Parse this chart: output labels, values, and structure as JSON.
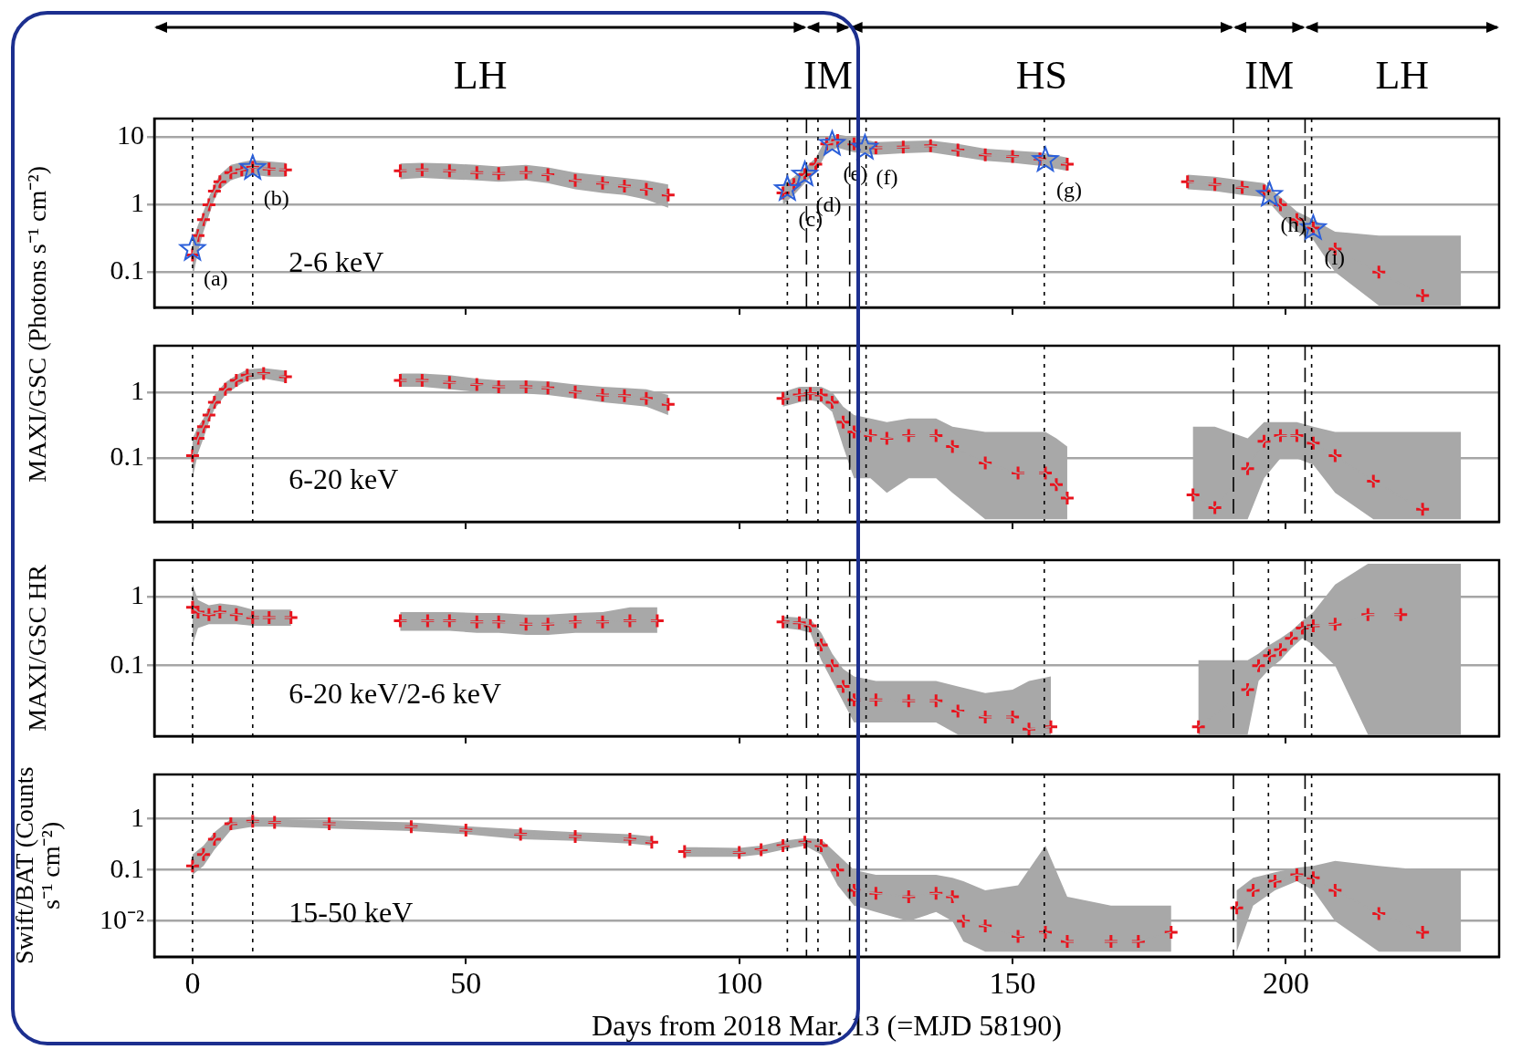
{
  "chart_data": [
    {
      "type": "scatter",
      "ylabel": "MAXI/GSC (Photons s⁻¹ cm⁻²)",
      "log": true,
      "grid": "y",
      "tick_labels": "y",
      "xlim": [
        -7,
        239
      ],
      "xticks": [
        0,
        50,
        100,
        150,
        200
      ],
      "ylim": [
        0.03,
        19
      ],
      "yticks": [
        0.1,
        1,
        10
      ],
      "x": [
        0,
        1,
        2,
        3,
        4,
        5,
        7,
        9,
        11,
        14,
        17,
        27,
        38,
        42,
        47,
        52,
        56,
        61,
        65,
        70,
        75,
        79,
        83,
        87,
        98,
        108,
        110,
        112,
        114,
        116,
        118,
        121,
        125,
        130,
        135,
        140,
        145,
        150,
        155,
        160,
        171,
        182,
        187,
        192,
        196,
        199,
        202,
        205,
        209,
        217,
        225,
        232
      ],
      "series": [
        {
          "type": "line",
          "marker": "none",
          "color": "#a8a8a8",
          "values": [
            0.18,
            0.35,
            0.6,
            1.0,
            1.6,
            2.2,
            3.0,
            3.3,
            3.6,
            3.4,
            3.3,
            null,
            3.2,
            3.3,
            3.2,
            3.0,
            2.9,
            3.0,
            2.8,
            2.3,
            2.1,
            1.9,
            1.7,
            1.4,
            null,
            1.5,
            2.0,
            2.8,
            4.0,
            8.0,
            9.0,
            8.0,
            7.0,
            7.2,
            7.5,
            6.5,
            5.5,
            5.2,
            4.8,
            4.0,
            null,
            2.2,
            2.0,
            1.8,
            1.6,
            1.0,
            0.6,
            0.45,
            0.22,
            0.1,
            0.045,
            null
          ],
          "lower": [
            0.08,
            0.2,
            0.4,
            0.7,
            1.2,
            1.7,
            2.3,
            2.6,
            2.8,
            2.6,
            2.6,
            null,
            2.4,
            2.5,
            2.4,
            2.3,
            2.2,
            2.3,
            2.1,
            1.7,
            1.5,
            1.4,
            1.2,
            0.9,
            null,
            1.0,
            1.4,
            2.1,
            3.0,
            6.0,
            7.0,
            6.0,
            5.5,
            5.8,
            6.0,
            5.2,
            4.5,
            4.2,
            3.8,
            3.2,
            null,
            1.7,
            1.6,
            1.4,
            1.3,
            0.7,
            0.4,
            0.3,
            0.1,
            0.032,
            0.032,
            0.032
          ],
          "upper": [
            0.3,
            0.5,
            0.8,
            1.3,
            2.0,
            2.8,
            3.9,
            4.3,
            4.6,
            4.4,
            4.2,
            null,
            4.1,
            4.2,
            4.1,
            3.9,
            3.7,
            3.9,
            3.6,
            3.0,
            2.7,
            2.5,
            2.3,
            2.0,
            null,
            2.0,
            2.6,
            3.5,
            5.0,
            10,
            11,
            10,
            8.5,
            8.8,
            9.0,
            8.0,
            6.8,
            6.4,
            6.0,
            5.0,
            null,
            2.8,
            2.6,
            2.3,
            2.1,
            1.3,
            0.8,
            0.6,
            0.4,
            0.35,
            0.35,
            0.35
          ]
        },
        {
          "type": "scatter",
          "marker": "cross",
          "color": "#e8141e",
          "values": [
            0.18,
            0.35,
            0.6,
            1.0,
            1.6,
            2.2,
            3.0,
            3.3,
            3.6,
            3.4,
            3.3,
            null,
            3.2,
            3.3,
            3.2,
            3.0,
            2.9,
            3.0,
            2.8,
            2.3,
            2.1,
            1.9,
            1.7,
            1.4,
            null,
            1.5,
            2.0,
            2.8,
            4.0,
            8.0,
            9.0,
            8.0,
            7.0,
            7.2,
            7.5,
            6.5,
            5.5,
            5.2,
            4.8,
            4.0,
            null,
            2.2,
            2.0,
            1.8,
            1.6,
            1.0,
            0.6,
            0.45,
            0.22,
            0.1,
            0.045,
            null
          ]
        },
        {
          "type": "scatter",
          "marker": "star",
          "color": "#2b5fd9",
          "x": [
            0,
            11,
            108.8,
            112,
            117,
            123,
            156,
            197,
            205
          ],
          "values": [
            0.22,
            3.5,
            1.7,
            2.8,
            8,
            7,
            4.6,
            1.4,
            0.45
          ]
        }
      ],
      "ref_lines": [
        {
          "axis": "x",
          "value": 112.3,
          "line_style": "dashed"
        },
        {
          "axis": "x",
          "value": 120.2,
          "line_style": "dashed"
        },
        {
          "axis": "x",
          "value": 190.4,
          "line_style": "dashed"
        },
        {
          "axis": "x",
          "value": 203.5,
          "line_style": "dashed"
        },
        {
          "axis": "x",
          "value": 0,
          "line_style": "dotted"
        },
        {
          "axis": "x",
          "value": 11,
          "line_style": "dotted"
        },
        {
          "axis": "x",
          "value": 108.8,
          "line_style": "dotted"
        },
        {
          "axis": "x",
          "value": 114.4,
          "line_style": "dotted"
        },
        {
          "axis": "x",
          "value": 123.2,
          "line_style": "dotted"
        },
        {
          "axis": "x",
          "value": 155.8,
          "line_style": "dotted"
        },
        {
          "axis": "x",
          "value": 196.8,
          "line_style": "dotted"
        },
        {
          "axis": "x",
          "value": 204.7,
          "line_style": "dotted"
        }
      ],
      "annotations": [
        "LH",
        "IM",
        "HS",
        "IM",
        "LH",
        "2-6 keV",
        {
          "text": "(a)",
          "x": 0,
          "y": 0.22
        },
        {
          "text": "(b)",
          "x": 11,
          "y": 3.5
        },
        {
          "text": "(c)",
          "x": 108.8,
          "y": 1.7
        },
        {
          "text": "(d)",
          "x": 112,
          "y": 2.8
        },
        {
          "text": "(e)",
          "x": 117,
          "y": 8
        },
        {
          "text": "(f)",
          "x": 123,
          "y": 7
        },
        {
          "text": "(g)",
          "x": 156,
          "y": 4.6
        },
        {
          "text": "(h)",
          "x": 197,
          "y": 1.4
        },
        {
          "text": "(i)",
          "x": 205,
          "y": 0.45
        }
      ]
    },
    {
      "type": "scatter",
      "log": true,
      "grid": "y",
      "tick_labels": "y",
      "xlim": [
        -7,
        239
      ],
      "xticks": [
        0,
        50,
        100,
        150,
        200
      ],
      "ylim": [
        0.011,
        5
      ],
      "yticks": [
        0.1,
        1
      ],
      "x": [
        0,
        1,
        2,
        3,
        4,
        6,
        8,
        10,
        13,
        17,
        27,
        38,
        42,
        47,
        52,
        56,
        61,
        65,
        70,
        75,
        79,
        83,
        87,
        98,
        108,
        111,
        113,
        115,
        117,
        119,
        121,
        124,
        127,
        131,
        136,
        139,
        145,
        151,
        156,
        158,
        160,
        171,
        183,
        187,
        193,
        196,
        199,
        202,
        205,
        209,
        216,
        225,
        232
      ],
      "series": [
        {
          "type": "line",
          "marker": "none",
          "color": "#a8a8a8",
          "values": [
            0.11,
            0.2,
            0.3,
            0.45,
            0.7,
            1.1,
            1.5,
            1.8,
            1.9,
            1.7,
            null,
            1.5,
            1.5,
            1.4,
            1.3,
            1.2,
            1.2,
            1.15,
            1.0,
            0.9,
            0.88,
            0.8,
            0.65,
            null,
            0.8,
            0.9,
            0.95,
            0.9,
            0.7,
            0.35,
            0.25,
            0.22,
            0.2,
            0.22,
            0.22,
            0.15,
            0.085,
            0.06,
            0.06,
            0.04,
            0.025,
            null,
            0.028,
            0.018,
            0.07,
            0.18,
            0.22,
            0.22,
            0.17,
            0.11,
            0.045,
            0.017,
            null
          ],
          "lower": [
            0.05,
            0.12,
            0.2,
            0.35,
            0.55,
            0.9,
            1.2,
            1.5,
            1.6,
            1.4,
            null,
            1.2,
            1.2,
            1.1,
            1.0,
            0.95,
            0.95,
            0.9,
            0.8,
            0.7,
            0.65,
            0.6,
            0.45,
            null,
            0.6,
            0.7,
            0.75,
            0.7,
            0.5,
            0.15,
            0.05,
            0.05,
            0.03,
            0.05,
            0.05,
            0.03,
            0.012,
            0.012,
            0.012,
            0.012,
            0.012,
            null,
            0.012,
            0.012,
            0.012,
            0.05,
            0.1,
            0.1,
            0.08,
            0.03,
            0.012,
            0.012,
            0.012
          ],
          "upper": [
            0.2,
            0.3,
            0.4,
            0.6,
            0.9,
            1.4,
            1.8,
            2.2,
            2.3,
            2.1,
            null,
            1.9,
            1.9,
            1.8,
            1.6,
            1.5,
            1.5,
            1.45,
            1.3,
            1.2,
            1.15,
            1.1,
            0.9,
            null,
            1.0,
            1.2,
            1.2,
            1.2,
            1.0,
            0.6,
            0.45,
            0.4,
            0.35,
            0.4,
            0.4,
            0.3,
            0.25,
            0.25,
            0.25,
            0.2,
            0.15,
            null,
            0.3,
            0.3,
            0.2,
            0.35,
            0.35,
            0.35,
            0.3,
            0.25,
            0.25,
            0.25,
            0.25
          ]
        },
        {
          "type": "scatter",
          "marker": "cross",
          "color": "#e8141e",
          "values": [
            0.11,
            0.2,
            0.3,
            0.45,
            0.7,
            1.1,
            1.5,
            1.8,
            1.9,
            1.7,
            null,
            1.5,
            1.5,
            1.4,
            1.3,
            1.2,
            1.2,
            1.15,
            1.0,
            0.9,
            0.88,
            0.8,
            0.65,
            null,
            0.8,
            0.9,
            0.95,
            0.9,
            0.7,
            0.35,
            0.25,
            0.22,
            0.2,
            0.22,
            0.22,
            0.15,
            0.085,
            0.06,
            0.06,
            0.04,
            0.025,
            null,
            0.028,
            0.018,
            0.07,
            0.18,
            0.22,
            0.22,
            0.17,
            0.11,
            0.045,
            0.017,
            null
          ]
        }
      ],
      "ref_lines": [
        {
          "axis": "x",
          "value": 112.3,
          "line_style": "dashed"
        },
        {
          "axis": "x",
          "value": 120.2,
          "line_style": "dashed"
        },
        {
          "axis": "x",
          "value": 190.4,
          "line_style": "dashed"
        },
        {
          "axis": "x",
          "value": 203.5,
          "line_style": "dashed"
        },
        {
          "axis": "x",
          "value": 0,
          "line_style": "dotted"
        },
        {
          "axis": "x",
          "value": 11,
          "line_style": "dotted"
        },
        {
          "axis": "x",
          "value": 108.8,
          "line_style": "dotted"
        },
        {
          "axis": "x",
          "value": 114.4,
          "line_style": "dotted"
        },
        {
          "axis": "x",
          "value": 123.2,
          "line_style": "dotted"
        },
        {
          "axis": "x",
          "value": 155.8,
          "line_style": "dotted"
        },
        {
          "axis": "x",
          "value": 196.8,
          "line_style": "dotted"
        },
        {
          "axis": "x",
          "value": 204.7,
          "line_style": "dotted"
        }
      ],
      "annotations": [
        "6-20 keV"
      ]
    },
    {
      "type": "scatter",
      "ylabel": "MAXI/GSC HR",
      "log": true,
      "grid": "y",
      "tick_labels": "y",
      "xlim": [
        -7,
        239
      ],
      "xticks": [
        0,
        50,
        100,
        150,
        200
      ],
      "ylim": [
        0.0095,
        3.4
      ],
      "yticks": [
        0.1,
        1
      ],
      "x": [
        0,
        1,
        3,
        5,
        8,
        11,
        14,
        18,
        27,
        38,
        43,
        47,
        52,
        56,
        61,
        65,
        70,
        75,
        80,
        85,
        98,
        108,
        111,
        113,
        115,
        117,
        119,
        121,
        125,
        131,
        136,
        140,
        145,
        150,
        153,
        157,
        170,
        184,
        193,
        195,
        197,
        199,
        201,
        203,
        205,
        209,
        215,
        221,
        232
      ],
      "series": [
        {
          "type": "line",
          "marker": "none",
          "color": "#a8a8a8",
          "values": [
            0.7,
            0.6,
            0.55,
            0.6,
            0.55,
            0.5,
            0.5,
            0.5,
            null,
            0.45,
            0.45,
            0.45,
            0.43,
            0.43,
            0.4,
            0.4,
            0.43,
            0.43,
            0.45,
            0.45,
            null,
            0.43,
            0.42,
            0.38,
            0.2,
            0.1,
            0.05,
            0.032,
            0.032,
            0.031,
            0.031,
            0.022,
            0.018,
            0.018,
            0.012,
            0.013,
            null,
            0.013,
            0.045,
            0.1,
            0.14,
            0.17,
            0.25,
            0.35,
            0.38,
            0.4,
            0.55,
            0.55,
            null
          ],
          "lower": [
            0.2,
            0.35,
            0.4,
            0.4,
            0.4,
            0.38,
            0.38,
            0.38,
            null,
            0.32,
            0.32,
            0.32,
            0.3,
            0.3,
            0.28,
            0.28,
            0.3,
            0.3,
            0.3,
            0.3,
            null,
            0.35,
            0.33,
            0.3,
            0.12,
            0.06,
            0.03,
            0.015,
            0.015,
            0.015,
            0.015,
            0.01,
            0.01,
            0.01,
            0.01,
            0.01,
            null,
            0.01,
            0.01,
            0.06,
            0.09,
            0.12,
            0.18,
            0.25,
            0.2,
            0.1,
            0.01,
            0.01,
            0.01
          ],
          "upper": [
            1.5,
            0.9,
            0.75,
            0.8,
            0.75,
            0.65,
            0.65,
            0.65,
            null,
            0.6,
            0.6,
            0.6,
            0.58,
            0.58,
            0.55,
            0.55,
            0.58,
            0.6,
            0.7,
            0.7,
            null,
            0.52,
            0.5,
            0.48,
            0.3,
            0.15,
            0.09,
            0.07,
            0.06,
            0.06,
            0.06,
            0.05,
            0.04,
            0.045,
            0.06,
            0.07,
            null,
            0.12,
            0.12,
            0.15,
            0.2,
            0.25,
            0.32,
            0.45,
            0.6,
            1.5,
            3.0,
            3.0,
            3.0
          ]
        },
        {
          "type": "scatter",
          "marker": "cross",
          "color": "#e8141e",
          "values": [
            0.7,
            0.6,
            0.55,
            0.6,
            0.55,
            0.5,
            0.5,
            0.5,
            null,
            0.45,
            0.45,
            0.45,
            0.43,
            0.43,
            0.4,
            0.4,
            0.43,
            0.43,
            0.45,
            0.45,
            null,
            0.43,
            0.42,
            0.38,
            0.2,
            0.1,
            0.05,
            0.032,
            0.032,
            0.031,
            0.031,
            0.022,
            0.018,
            0.018,
            0.012,
            0.013,
            null,
            0.013,
            0.045,
            0.1,
            0.14,
            0.17,
            0.25,
            0.35,
            0.38,
            0.4,
            0.55,
            0.55,
            null
          ]
        }
      ],
      "ref_lines": [
        {
          "axis": "x",
          "value": 112.3,
          "line_style": "dashed"
        },
        {
          "axis": "x",
          "value": 120.2,
          "line_style": "dashed"
        },
        {
          "axis": "x",
          "value": 190.4,
          "line_style": "dashed"
        },
        {
          "axis": "x",
          "value": 203.5,
          "line_style": "dashed"
        },
        {
          "axis": "x",
          "value": 0,
          "line_style": "dotted"
        },
        {
          "axis": "x",
          "value": 11,
          "line_style": "dotted"
        },
        {
          "axis": "x",
          "value": 108.8,
          "line_style": "dotted"
        },
        {
          "axis": "x",
          "value": 114.4,
          "line_style": "dotted"
        },
        {
          "axis": "x",
          "value": 123.2,
          "line_style": "dotted"
        },
        {
          "axis": "x",
          "value": 155.8,
          "line_style": "dotted"
        },
        {
          "axis": "x",
          "value": 196.8,
          "line_style": "dotted"
        },
        {
          "axis": "x",
          "value": 204.7,
          "line_style": "dotted"
        }
      ],
      "annotations": [
        "6-20 keV/2-6 keV"
      ]
    },
    {
      "type": "scatter",
      "ylabel": "Swift/BAT (Counts s⁻¹ cm⁻²)",
      "xlabel": "Days from 2018 Mar. 13 (=MJD 58190)",
      "log": true,
      "grid": "y",
      "xlim": [
        -7,
        239
      ],
      "xticks": [
        0,
        50,
        100,
        150,
        200
      ],
      "ylim": [
        0.002,
        7.4
      ],
      "yticks": [
        {
          "value": 0.01,
          "label": "10⁻²"
        },
        0.1,
        1
      ],
      "x": [
        0,
        2,
        4,
        7,
        11,
        15,
        25,
        40,
        50,
        60,
        70,
        80,
        84,
        87,
        90,
        100,
        104,
        108,
        112,
        115,
        118,
        121,
        125,
        131,
        136,
        139,
        141,
        145,
        151,
        156,
        160,
        168,
        173,
        179,
        185,
        191,
        194,
        198,
        202,
        205,
        209,
        217,
        225,
        232
      ],
      "series": [
        {
          "type": "line",
          "marker": "none",
          "color": "#a8a8a8",
          "values": [
            0.12,
            0.2,
            0.4,
            0.8,
            0.9,
            0.85,
            0.8,
            0.7,
            0.6,
            0.5,
            0.45,
            0.4,
            0.35,
            null,
            0.23,
            0.22,
            0.25,
            0.3,
            0.35,
            0.3,
            0.1,
            0.04,
            0.035,
            0.03,
            0.035,
            0.03,
            0.01,
            0.008,
            0.005,
            0.006,
            0.004,
            0.004,
            0.004,
            0.006,
            null,
            0.018,
            0.04,
            0.06,
            0.08,
            0.07,
            0.04,
            0.014,
            0.006,
            null
          ],
          "lower": [
            0.08,
            0.12,
            0.25,
            0.6,
            0.7,
            0.7,
            0.65,
            0.58,
            0.5,
            0.4,
            0.37,
            0.33,
            0.3,
            null,
            0.18,
            0.18,
            0.2,
            0.25,
            0.3,
            0.2,
            0.05,
            0.02,
            0.015,
            0.01,
            0.015,
            0.01,
            0.004,
            0.0025,
            0.0025,
            0.0025,
            0.0025,
            0.0025,
            0.0025,
            0.0025,
            null,
            0.0025,
            0.02,
            0.04,
            0.06,
            0.04,
            0.01,
            0.0025,
            0.0025,
            0.0025
          ],
          "upper": [
            0.2,
            0.3,
            0.55,
            1.0,
            1.1,
            1.0,
            0.95,
            0.85,
            0.72,
            0.62,
            0.55,
            0.5,
            0.45,
            null,
            0.28,
            0.27,
            0.3,
            0.37,
            0.42,
            0.4,
            0.2,
            0.1,
            0.08,
            0.08,
            0.08,
            0.07,
            0.06,
            0.04,
            0.05,
            0.3,
            0.03,
            0.02,
            0.02,
            0.02,
            null,
            0.04,
            0.07,
            0.09,
            0.11,
            0.12,
            0.15,
            0.12,
            0.1,
            0.1
          ]
        },
        {
          "type": "scatter",
          "marker": "cross",
          "color": "#e8141e",
          "values": [
            0.12,
            0.2,
            0.4,
            0.8,
            0.9,
            0.85,
            0.8,
            0.7,
            0.6,
            0.5,
            0.45,
            0.4,
            0.35,
            null,
            0.23,
            0.22,
            0.25,
            0.3,
            0.35,
            0.3,
            0.1,
            0.04,
            0.035,
            0.03,
            0.035,
            0.03,
            0.01,
            0.008,
            0.005,
            0.006,
            0.004,
            0.004,
            0.004,
            0.006,
            null,
            0.018,
            0.04,
            0.06,
            0.08,
            0.07,
            0.04,
            0.014,
            0.006,
            null
          ]
        }
      ],
      "ref_lines": [
        {
          "axis": "x",
          "value": 112.3,
          "line_style": "dashed"
        },
        {
          "axis": "x",
          "value": 120.2,
          "line_style": "dashed"
        },
        {
          "axis": "x",
          "value": 190.4,
          "line_style": "dashed"
        },
        {
          "axis": "x",
          "value": 203.5,
          "line_style": "dashed"
        },
        {
          "axis": "x",
          "value": 0,
          "line_style": "dotted"
        },
        {
          "axis": "x",
          "value": 11,
          "line_style": "dotted"
        },
        {
          "axis": "x",
          "value": 108.8,
          "line_style": "dotted"
        },
        {
          "axis": "x",
          "value": 114.4,
          "line_style": "dotted"
        },
        {
          "axis": "x",
          "value": 123.2,
          "line_style": "dotted"
        },
        {
          "axis": "x",
          "value": 155.8,
          "line_style": "dotted"
        },
        {
          "axis": "x",
          "value": 196.8,
          "line_style": "dotted"
        },
        {
          "axis": "x",
          "value": 204.7,
          "line_style": "dotted"
        }
      ],
      "annotations": [
        "15-50 keV"
      ]
    }
  ]
}
